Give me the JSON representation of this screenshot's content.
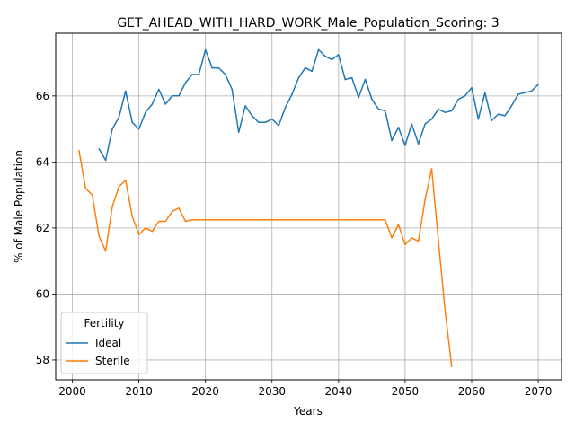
{
  "chart_data": {
    "type": "line",
    "title": "GET_AHEAD_WITH_HARD_WORK_Male_Population_Scoring: 3",
    "xlabel": "Years",
    "ylabel": "% of Male Population",
    "xlim": [
      1997.5,
      2073.5
    ],
    "ylim": [
      57.4,
      67.9
    ],
    "xticks": [
      2000,
      2010,
      2020,
      2030,
      2040,
      2050,
      2060,
      2070
    ],
    "yticks": [
      58,
      60,
      62,
      64,
      66
    ],
    "grid": true,
    "legend": {
      "title": "Fertility",
      "position": "lower-left"
    },
    "series": [
      {
        "name": "Ideal",
        "color": "#1f77b4",
        "x": [
          2004,
          2005,
          2006,
          2007,
          2008,
          2009,
          2010,
          2011,
          2012,
          2013,
          2014,
          2015,
          2016,
          2017,
          2018,
          2019,
          2020,
          2021,
          2022,
          2023,
          2024,
          2025,
          2026,
          2027,
          2028,
          2029,
          2030,
          2031,
          2032,
          2033,
          2034,
          2035,
          2036,
          2037,
          2038,
          2039,
          2040,
          2041,
          2042,
          2043,
          2044,
          2045,
          2046,
          2047,
          2048,
          2049,
          2050,
          2051,
          2052,
          2053,
          2054,
          2055,
          2056,
          2057,
          2058,
          2059,
          2060,
          2061,
          2062,
          2063,
          2064,
          2065,
          2066,
          2067,
          2068,
          2069,
          2070
        ],
        "y": [
          64.4,
          64.05,
          65.0,
          65.35,
          66.15,
          65.2,
          65.0,
          65.5,
          65.75,
          66.2,
          65.75,
          66.0,
          66.0,
          66.4,
          66.65,
          66.65,
          67.4,
          66.85,
          66.85,
          66.65,
          66.2,
          64.9,
          65.7,
          65.4,
          65.2,
          65.2,
          65.3,
          65.1,
          65.65,
          66.05,
          66.55,
          66.85,
          66.75,
          67.4,
          67.2,
          67.1,
          67.25,
          66.5,
          66.55,
          65.95,
          66.5,
          65.9,
          65.6,
          65.55,
          64.65,
          65.05,
          64.5,
          65.15,
          64.55,
          65.15,
          65.3,
          65.6,
          65.5,
          65.55,
          65.9,
          66.0,
          66.25,
          65.3,
          66.1,
          65.25,
          65.45,
          65.4,
          65.7,
          66.05,
          66.1,
          66.15,
          66.35
        ]
      },
      {
        "name": "Sterile",
        "color": "#ff7f0e",
        "x": [
          2001,
          2002,
          2003,
          2004,
          2005,
          2006,
          2007,
          2008,
          2009,
          2010,
          2011,
          2012,
          2013,
          2014,
          2015,
          2016,
          2017,
          2018,
          2019,
          2020,
          2021,
          2022,
          2023,
          2024,
          2025,
          2026,
          2027,
          2028,
          2029,
          2030,
          2031,
          2032,
          2033,
          2034,
          2035,
          2036,
          2037,
          2038,
          2039,
          2040,
          2041,
          2042,
          2043,
          2044,
          2045,
          2046,
          2047,
          2048,
          2049,
          2050,
          2051,
          2052,
          2053,
          2054,
          2055,
          2056,
          2057
        ],
        "y": [
          64.35,
          63.2,
          63.0,
          61.75,
          61.3,
          62.65,
          63.25,
          63.45,
          62.35,
          61.8,
          62.0,
          61.9,
          62.2,
          62.2,
          62.5,
          62.6,
          62.2,
          62.25,
          62.25,
          62.25,
          62.25,
          62.25,
          62.25,
          62.25,
          62.25,
          62.25,
          62.25,
          62.25,
          62.25,
          62.25,
          62.25,
          62.25,
          62.25,
          62.25,
          62.25,
          62.25,
          62.25,
          62.25,
          62.25,
          62.25,
          62.25,
          62.25,
          62.25,
          62.25,
          62.25,
          62.25,
          62.25,
          61.7,
          62.1,
          61.5,
          61.7,
          61.6,
          62.85,
          63.8,
          61.6,
          59.5,
          57.8
        ]
      }
    ]
  }
}
